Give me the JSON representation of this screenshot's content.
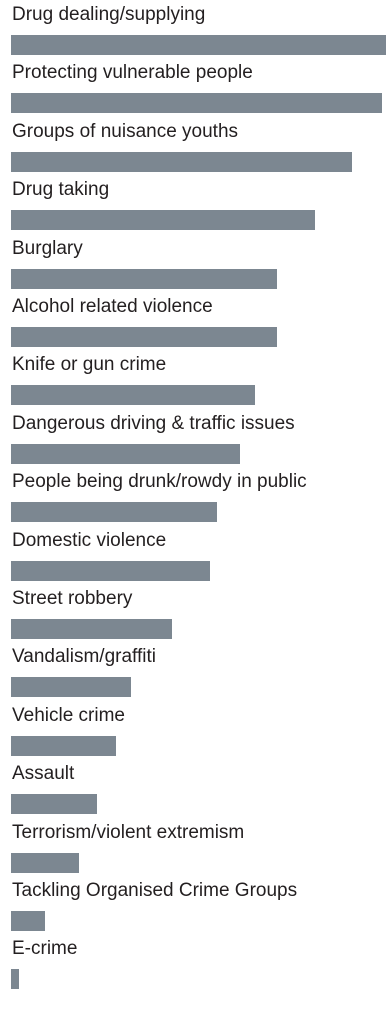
{
  "chart_data": {
    "type": "bar",
    "orientation": "horizontal",
    "title": "",
    "xlabel": "",
    "ylabel": "",
    "xlim": [
      0,
      100
    ],
    "grid": false,
    "bar_color": "#7c8791",
    "categories": [
      "Drug dealing/supplying",
      "Protecting vulnerable people",
      "Groups of nuisance youths",
      "Drug taking",
      "Burglary",
      "Alcohol related violence",
      "Knife or gun crime",
      "Dangerous driving & traffic issues",
      "People being drunk/rowdy in public",
      "Domestic violence",
      "Street robbery",
      "Vandalism/graffiti",
      "Vehicle crime",
      "Assault",
      "Terrorism/violent extremism",
      "Tackling Organised Crime Groups",
      "E-crime"
    ],
    "values": [
      100,
      99,
      91,
      81,
      71,
      71,
      65,
      61,
      55,
      53,
      43,
      32,
      28,
      23,
      18,
      9,
      2
    ]
  }
}
